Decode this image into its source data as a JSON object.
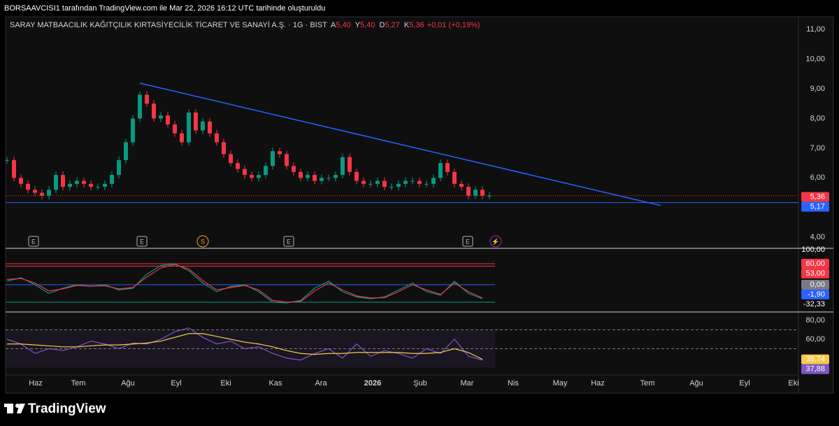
{
  "header": {
    "caption": "BORSAAVCISI1 tarafından TradingView.com ile Mar 22, 2026 16:12 UTC tarihinde oluşturuldu"
  },
  "branding": "TradingView",
  "chart_data": [
    {
      "type": "candlestick",
      "title": "SARAY MATBAACILIK KAĞITÇILIK KIRTASİYECİLİK TİCARET VE SANAYİ A.Ş. · 1G · BIST",
      "legend": [
        {
          "key": "A",
          "text": "5,40"
        },
        {
          "key": "Y",
          "text": "5,40"
        },
        {
          "key": "D",
          "text": "5,27"
        },
        {
          "key": "K",
          "text": "5,36"
        },
        {
          "key": "",
          "text": "+0,01 (+0,19%)"
        }
      ],
      "up_color": "#089981",
      "down_color": "#f23645",
      "xlim": [
        -0.2,
        113.2
      ],
      "xticks": [
        {
          "value": 4.1,
          "label": "Haz"
        },
        {
          "value": 10.2,
          "label": "Tem"
        },
        {
          "value": 17.3,
          "label": "Ağu"
        },
        {
          "value": 24.2,
          "label": "Eyl"
        },
        {
          "value": 31.3,
          "label": "Eki"
        },
        {
          "value": 38.4,
          "label": "Kas"
        },
        {
          "value": 44.9,
          "label": "Ara"
        },
        {
          "value": 52.3,
          "label": "2026"
        },
        {
          "value": 59.1,
          "label": "Şub"
        },
        {
          "value": 65.8,
          "label": "Mar"
        },
        {
          "value": 72.4,
          "label": "Nis"
        },
        {
          "value": 79.1,
          "label": "May"
        },
        {
          "value": 84.5,
          "label": "Haz"
        },
        {
          "value": 91.6,
          "label": "Tem"
        },
        {
          "value": 98.6,
          "label": "Ağu"
        },
        {
          "value": 105.5,
          "label": "Eyl"
        },
        {
          "value": 112.5,
          "label": "Eki"
        }
      ],
      "ylim": [
        3.7,
        11.4
      ],
      "yticks": [
        {
          "value": 11,
          "label": "11,00"
        },
        {
          "value": 10,
          "label": "10,00"
        },
        {
          "value": 9,
          "label": "9,00"
        },
        {
          "value": 8,
          "label": "8,00"
        },
        {
          "value": 7,
          "label": "7,00"
        },
        {
          "value": 6,
          "label": "6,00"
        },
        {
          "value": 4,
          "label": "4,00"
        }
      ],
      "series": [
        {
          "name": "SARAY",
          "values": [
            6.6,
            6.0,
            5.8,
            5.6,
            5.5,
            5.4,
            5.6,
            6.1,
            5.7,
            5.8,
            5.9,
            5.8,
            5.7,
            5.7,
            5.8,
            6.1,
            6.6,
            7.2,
            8.0,
            8.8,
            8.5,
            8.0,
            8.1,
            7.8,
            7.5,
            7.2,
            8.2,
            7.6,
            7.9,
            7.5,
            7.2,
            6.8,
            6.5,
            6.3,
            6.1,
            6.0,
            6.1,
            6.4,
            6.9,
            6.8,
            6.4,
            6.2,
            6.0,
            6.1,
            5.9,
            6.0,
            6.0,
            6.1,
            6.7,
            6.2,
            5.9,
            5.8,
            5.8,
            5.9,
            5.7,
            5.7,
            5.8,
            5.9,
            5.9,
            5.8,
            5.8,
            6.0,
            6.5,
            6.2,
            5.8,
            5.7,
            5.4,
            5.6,
            5.4,
            5.4
          ]
        }
      ],
      "lines": [
        {
          "x": [
            19,
            93.5
          ],
          "y": [
            9.19,
            5.07
          ],
          "color": "#2962ff"
        }
      ],
      "hline": {
        "value": 5.17,
        "color": "#2962ff"
      },
      "price_labels": [
        {
          "value": 5.36,
          "label": "5,36",
          "color": "#f23645"
        },
        {
          "value": 5.17,
          "label": "5,17",
          "color": "#2962ff"
        }
      ],
      "events": [
        {
          "x": 3.8,
          "label": "E"
        },
        {
          "x": 19.3,
          "label": "E"
        },
        {
          "x": 28,
          "label": "S"
        },
        {
          "x": 40.3,
          "label": "E"
        },
        {
          "x": 65.9,
          "label": "E"
        },
        {
          "x": 69.9,
          "label": "⚡"
        }
      ]
    },
    {
      "type": "line",
      "ylim": [
        -76,
        100
      ],
      "x": [
        0,
        2,
        4,
        6,
        8,
        10,
        12,
        14,
        16,
        18,
        20,
        22,
        24,
        26,
        28,
        30,
        32,
        34,
        36,
        38,
        40,
        42,
        44,
        46,
        48,
        50,
        52,
        54,
        56,
        58,
        60,
        62,
        64,
        66,
        68
      ],
      "series": [
        {
          "name": "fast",
          "color": "#089981",
          "values": [
            10,
            20,
            0,
            -25,
            -10,
            0,
            -5,
            0,
            -15,
            -10,
            30,
            55,
            60,
            40,
            5,
            -20,
            -5,
            0,
            -20,
            -50,
            -52,
            -45,
            -10,
            10,
            -20,
            -35,
            -40,
            -35,
            -15,
            5,
            -20,
            -30,
            10,
            -25,
            -40
          ]
        },
        {
          "name": "slow",
          "color": "#f23645",
          "values": [
            15,
            18,
            5,
            -18,
            -12,
            -2,
            -4,
            -3,
            -12,
            -8,
            22,
            48,
            58,
            45,
            12,
            -15,
            -8,
            -2,
            -15,
            -45,
            -50,
            -48,
            -18,
            5,
            -15,
            -32,
            -38,
            -37,
            -20,
            0,
            -15,
            -28,
            5,
            -20,
            -38
          ]
        }
      ],
      "levels": [
        {
          "value": 60,
          "color": "#f23645"
        },
        {
          "value": 53,
          "color": "#f23645"
        },
        {
          "value": 0,
          "color": "#2962ff"
        },
        {
          "value": -50,
          "color": "#089981"
        }
      ],
      "price_labels": [
        {
          "value": 100,
          "label": "100,00",
          "color": ""
        },
        {
          "value": 60,
          "label": "60,00",
          "color": "#f23645"
        },
        {
          "value": 53,
          "label": "53,00",
          "color": "#f23645"
        },
        {
          "value": 0,
          "label": "0,00",
          "color": "#787b86"
        },
        {
          "value": -1.9,
          "label": "-1,90",
          "color": "#2962ff"
        },
        {
          "value": -32.33,
          "label": "-32,33",
          "color": ""
        }
      ]
    },
    {
      "type": "line",
      "ylim": [
        24,
        86
      ],
      "x": [
        0,
        2,
        4,
        6,
        8,
        10,
        12,
        14,
        16,
        18,
        20,
        22,
        24,
        26,
        28,
        30,
        32,
        34,
        36,
        38,
        40,
        42,
        44,
        46,
        48,
        50,
        52,
        54,
        56,
        58,
        60,
        62,
        64,
        66,
        68
      ],
      "yticks": [
        {
          "value": 80,
          "label": "80,00"
        },
        {
          "value": 60,
          "label": "60,00"
        }
      ],
      "series": [
        {
          "name": "RSI",
          "color": "#7e57c2",
          "values": [
            60,
            55,
            45,
            50,
            48,
            52,
            58,
            55,
            50,
            56,
            55,
            60,
            68,
            72,
            62,
            55,
            58,
            50,
            52,
            45,
            40,
            38,
            45,
            50,
            40,
            55,
            42,
            48,
            45,
            40,
            50,
            45,
            60,
            42,
            37.88
          ]
        },
        {
          "name": "MA",
          "color": "#f7c948",
          "values": [
            55,
            55,
            54,
            53,
            52,
            52,
            53,
            54,
            54,
            55,
            56,
            58,
            62,
            66,
            66,
            63,
            60,
            57,
            55,
            52,
            48,
            45,
            44,
            45,
            45,
            46,
            46,
            46,
            46,
            45,
            45,
            46,
            50,
            46,
            38.74
          ]
        }
      ],
      "band": [
        30,
        70
      ],
      "levels": [
        {
          "value": 70,
          "color": "#787b86"
        },
        {
          "value": 50,
          "color": "#787b86"
        }
      ],
      "price_labels": [
        {
          "value": 38.74,
          "label": "38,74",
          "color": "#f7c948"
        },
        {
          "value": 37.88,
          "label": "37,88",
          "color": "#7e57c2"
        }
      ]
    }
  ]
}
